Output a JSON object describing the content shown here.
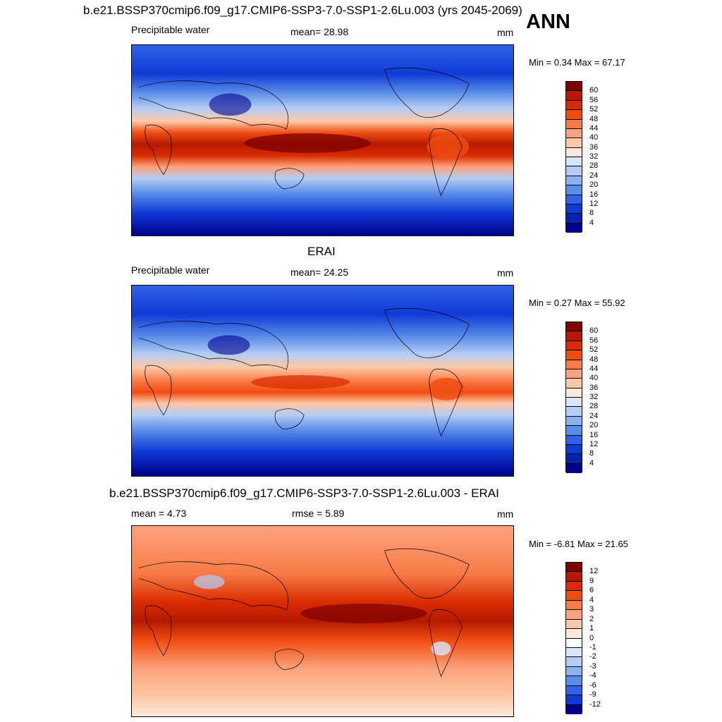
{
  "header": {
    "title": "b.e21.BSSP370cmip6.f09_g17.CMIP6-SSP3-7.0-SSP1-2.6Lu.003 (yrs 2045-2069)",
    "season": "ANN"
  },
  "panels": [
    {
      "id": "model",
      "left_label": "Precipitable water",
      "center_label": "mean=  28.98",
      "units": "mm",
      "minmax": "Min =   0.34 Max =  67.17",
      "levels": [
        "60",
        "56",
        "52",
        "48",
        "44",
        "40",
        "36",
        "32",
        "28",
        "24",
        "20",
        "16",
        "12",
        "8",
        "4"
      ],
      "colors": [
        "#7f0000",
        "#b51a00",
        "#d92b00",
        "#f04d12",
        "#f87b48",
        "#fda27c",
        "#fdc8a7",
        "#feeadc",
        "#d8e6fb",
        "#b3cdf5",
        "#8cb1f0",
        "#5a8ce9",
        "#2f62e6",
        "#0f3ad6",
        "#0424b0",
        "#00008a"
      ]
    },
    {
      "id": "obs",
      "title": "ERAI",
      "left_label": "Precipitable water",
      "center_label": "mean=  24.25",
      "units": "mm",
      "minmax": "Min =   0.27 Max =  55.92",
      "levels": [
        "60",
        "56",
        "52",
        "48",
        "44",
        "40",
        "36",
        "32",
        "28",
        "24",
        "20",
        "16",
        "12",
        "8",
        "4"
      ],
      "colors": [
        "#7f0000",
        "#b51a00",
        "#d92b00",
        "#f04d12",
        "#f87b48",
        "#fda27c",
        "#fdc8a7",
        "#feeadc",
        "#d8e6fb",
        "#b3cdf5",
        "#8cb1f0",
        "#5a8ce9",
        "#2f62e6",
        "#0f3ad6",
        "#0424b0",
        "#00008a"
      ]
    },
    {
      "id": "diff",
      "title": "b.e21.BSSP370cmip6.f09_g17.CMIP6-SSP3-7.0-SSP1-2.6Lu.003 - ERAI",
      "left_label": "mean =   4.73",
      "center_label": "rmse =   5.89",
      "units": "mm",
      "minmax": "Min =  -6.81 Max =  21.65",
      "levels": [
        "12",
        "9",
        "6",
        "4",
        "3",
        "2",
        "1",
        "0",
        "-1",
        "-2",
        "-3",
        "-4",
        "-6",
        "-9",
        "-12"
      ],
      "colors": [
        "#7f0000",
        "#b51a00",
        "#d92b00",
        "#f04d12",
        "#f87b48",
        "#fda27c",
        "#fdc8a7",
        "#feeadc",
        "#ffffff",
        "#d8e6fb",
        "#b3cdf5",
        "#8cb1f0",
        "#5a8ce9",
        "#2f62e6",
        "#0f3ad6",
        "#00008a"
      ]
    }
  ]
}
